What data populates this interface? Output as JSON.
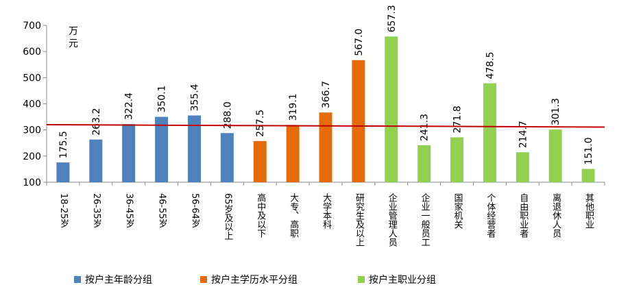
{
  "chart_data": {
    "type": "bar",
    "unit_label": "万元",
    "ylim": [
      100,
      700
    ],
    "yticks": [
      100,
      200,
      300,
      400,
      500,
      600,
      700
    ],
    "categories": [
      "18-25岁",
      "26-35岁",
      "36-45岁",
      "46-55岁",
      "56-64岁",
      "65岁及以上",
      "高中及以下",
      "大专、高职",
      "大学本科",
      "研究生及以上",
      "企业管理人员",
      "企业一般员工",
      "国家机关",
      "个体经营者",
      "自由职业者",
      "离退休人员",
      "其他职业"
    ],
    "values": [
      175.5,
      263.2,
      322.4,
      350.1,
      355.4,
      288.0,
      257.5,
      319.1,
      366.7,
      567.0,
      657.3,
      241.3,
      271.8,
      478.5,
      214.7,
      301.3,
      151.0
    ],
    "value_labels": [
      "175.5",
      "263.2",
      "322.4",
      "350.1",
      "355.4",
      "288.0",
      "257.5",
      "319.1",
      "366.7",
      "567.0",
      "657.3",
      "241.3",
      "271.8",
      "478.5",
      "214.7",
      "301.3",
      "151.0"
    ],
    "groups": [
      {
        "name": "按户主年龄分组",
        "color": "#4F81BD",
        "indices": [
          0,
          1,
          2,
          3,
          4,
          5
        ]
      },
      {
        "name": "按户主学历水平分组",
        "color": "#E46C0A",
        "indices": [
          6,
          7,
          8,
          9
        ]
      },
      {
        "name": "按户主职业分组",
        "color": "#92D050",
        "indices": [
          10,
          11,
          12,
          13,
          14,
          15,
          16
        ]
      }
    ],
    "trend_line": {
      "color": "#C00000",
      "start": 320,
      "end": 311
    },
    "grid": false,
    "legend_position": "bottom"
  }
}
